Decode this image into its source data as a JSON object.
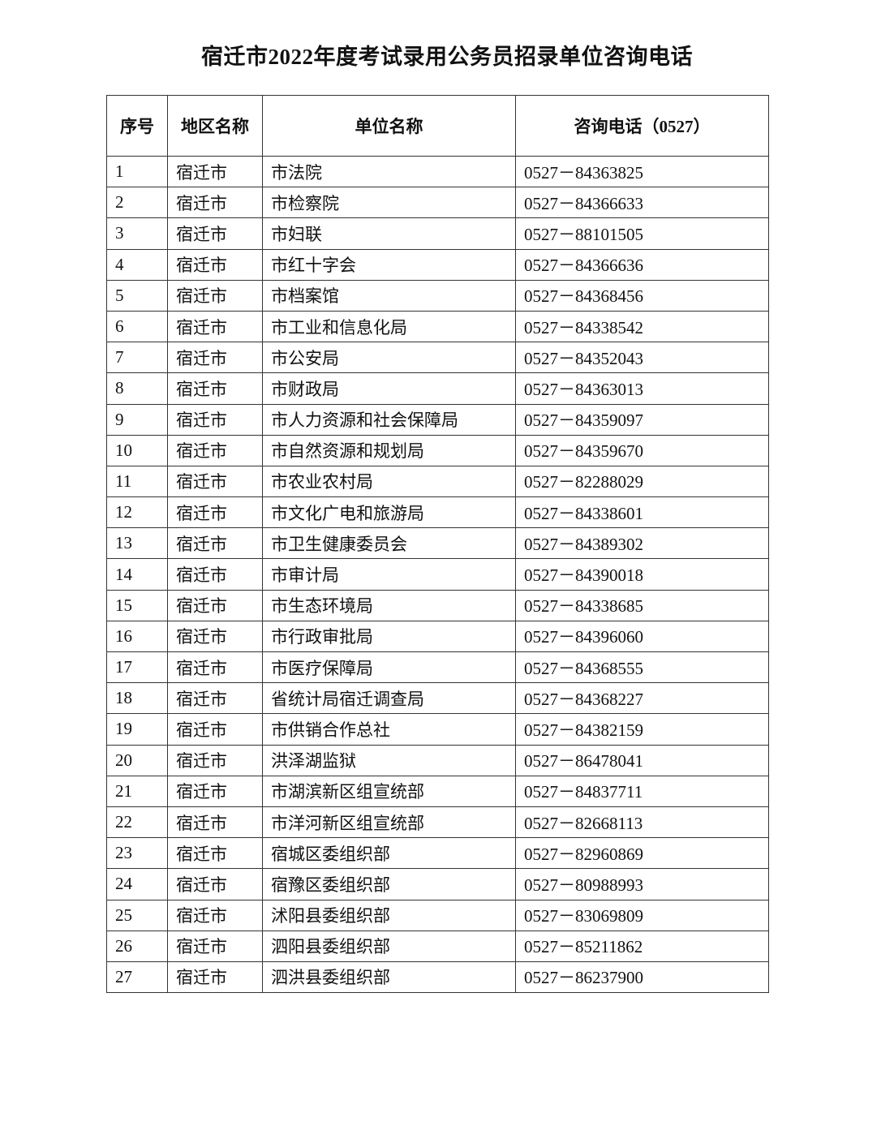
{
  "title": "宿迁市2022年度考试录用公务员招录单位咨询电话",
  "headers": [
    "序号",
    "地区名称",
    "单位名称",
    "咨询电话（0527）"
  ],
  "rows": [
    [
      "1",
      "宿迁市",
      "市法院",
      "0527－84363825"
    ],
    [
      "2",
      "宿迁市",
      "市检察院",
      "0527－84366633"
    ],
    [
      "3",
      "宿迁市",
      "市妇联",
      "0527－88101505"
    ],
    [
      "4",
      "宿迁市",
      "市红十字会",
      "0527－84366636"
    ],
    [
      "5",
      "宿迁市",
      "市档案馆",
      "0527－84368456"
    ],
    [
      "6",
      "宿迁市",
      "市工业和信息化局",
      "0527－84338542"
    ],
    [
      "7",
      "宿迁市",
      "市公安局",
      "0527－84352043"
    ],
    [
      "8",
      "宿迁市",
      "市财政局",
      "0527－84363013"
    ],
    [
      "9",
      "宿迁市",
      "市人力资源和社会保障局",
      "0527－84359097"
    ],
    [
      "10",
      "宿迁市",
      "市自然资源和规划局",
      "0527－84359670"
    ],
    [
      "11",
      "宿迁市",
      "市农业农村局",
      "0527－82288029"
    ],
    [
      "12",
      "宿迁市",
      "市文化广电和旅游局",
      "0527－84338601"
    ],
    [
      "13",
      "宿迁市",
      "市卫生健康委员会",
      "0527－84389302"
    ],
    [
      "14",
      "宿迁市",
      "市审计局",
      "0527－84390018"
    ],
    [
      "15",
      "宿迁市",
      "市生态环境局",
      "0527－84338685"
    ],
    [
      "16",
      "宿迁市",
      "市行政审批局",
      "0527－84396060"
    ],
    [
      "17",
      "宿迁市",
      "市医疗保障局",
      "0527－84368555"
    ],
    [
      "18",
      "宿迁市",
      "省统计局宿迁调查局",
      "0527－84368227"
    ],
    [
      "19",
      "宿迁市",
      "市供销合作总社",
      "0527－84382159"
    ],
    [
      "20",
      "宿迁市",
      "洪泽湖监狱",
      "0527－86478041"
    ],
    [
      "21",
      "宿迁市",
      "市湖滨新区组宣统部",
      "0527－84837711"
    ],
    [
      "22",
      "宿迁市",
      "市洋河新区组宣统部",
      "0527－82668113"
    ],
    [
      "23",
      "宿迁市",
      "宿城区委组织部",
      "0527－82960869"
    ],
    [
      "24",
      "宿迁市",
      "宿豫区委组织部",
      "0527－80988993"
    ],
    [
      "25",
      "宿迁市",
      "沭阳县委组织部",
      "0527－83069809"
    ],
    [
      "26",
      "宿迁市",
      "泗阳县委组织部",
      "0527－85211862"
    ],
    [
      "27",
      "宿迁市",
      "泗洪县委组织部",
      "0527－86237900"
    ]
  ]
}
